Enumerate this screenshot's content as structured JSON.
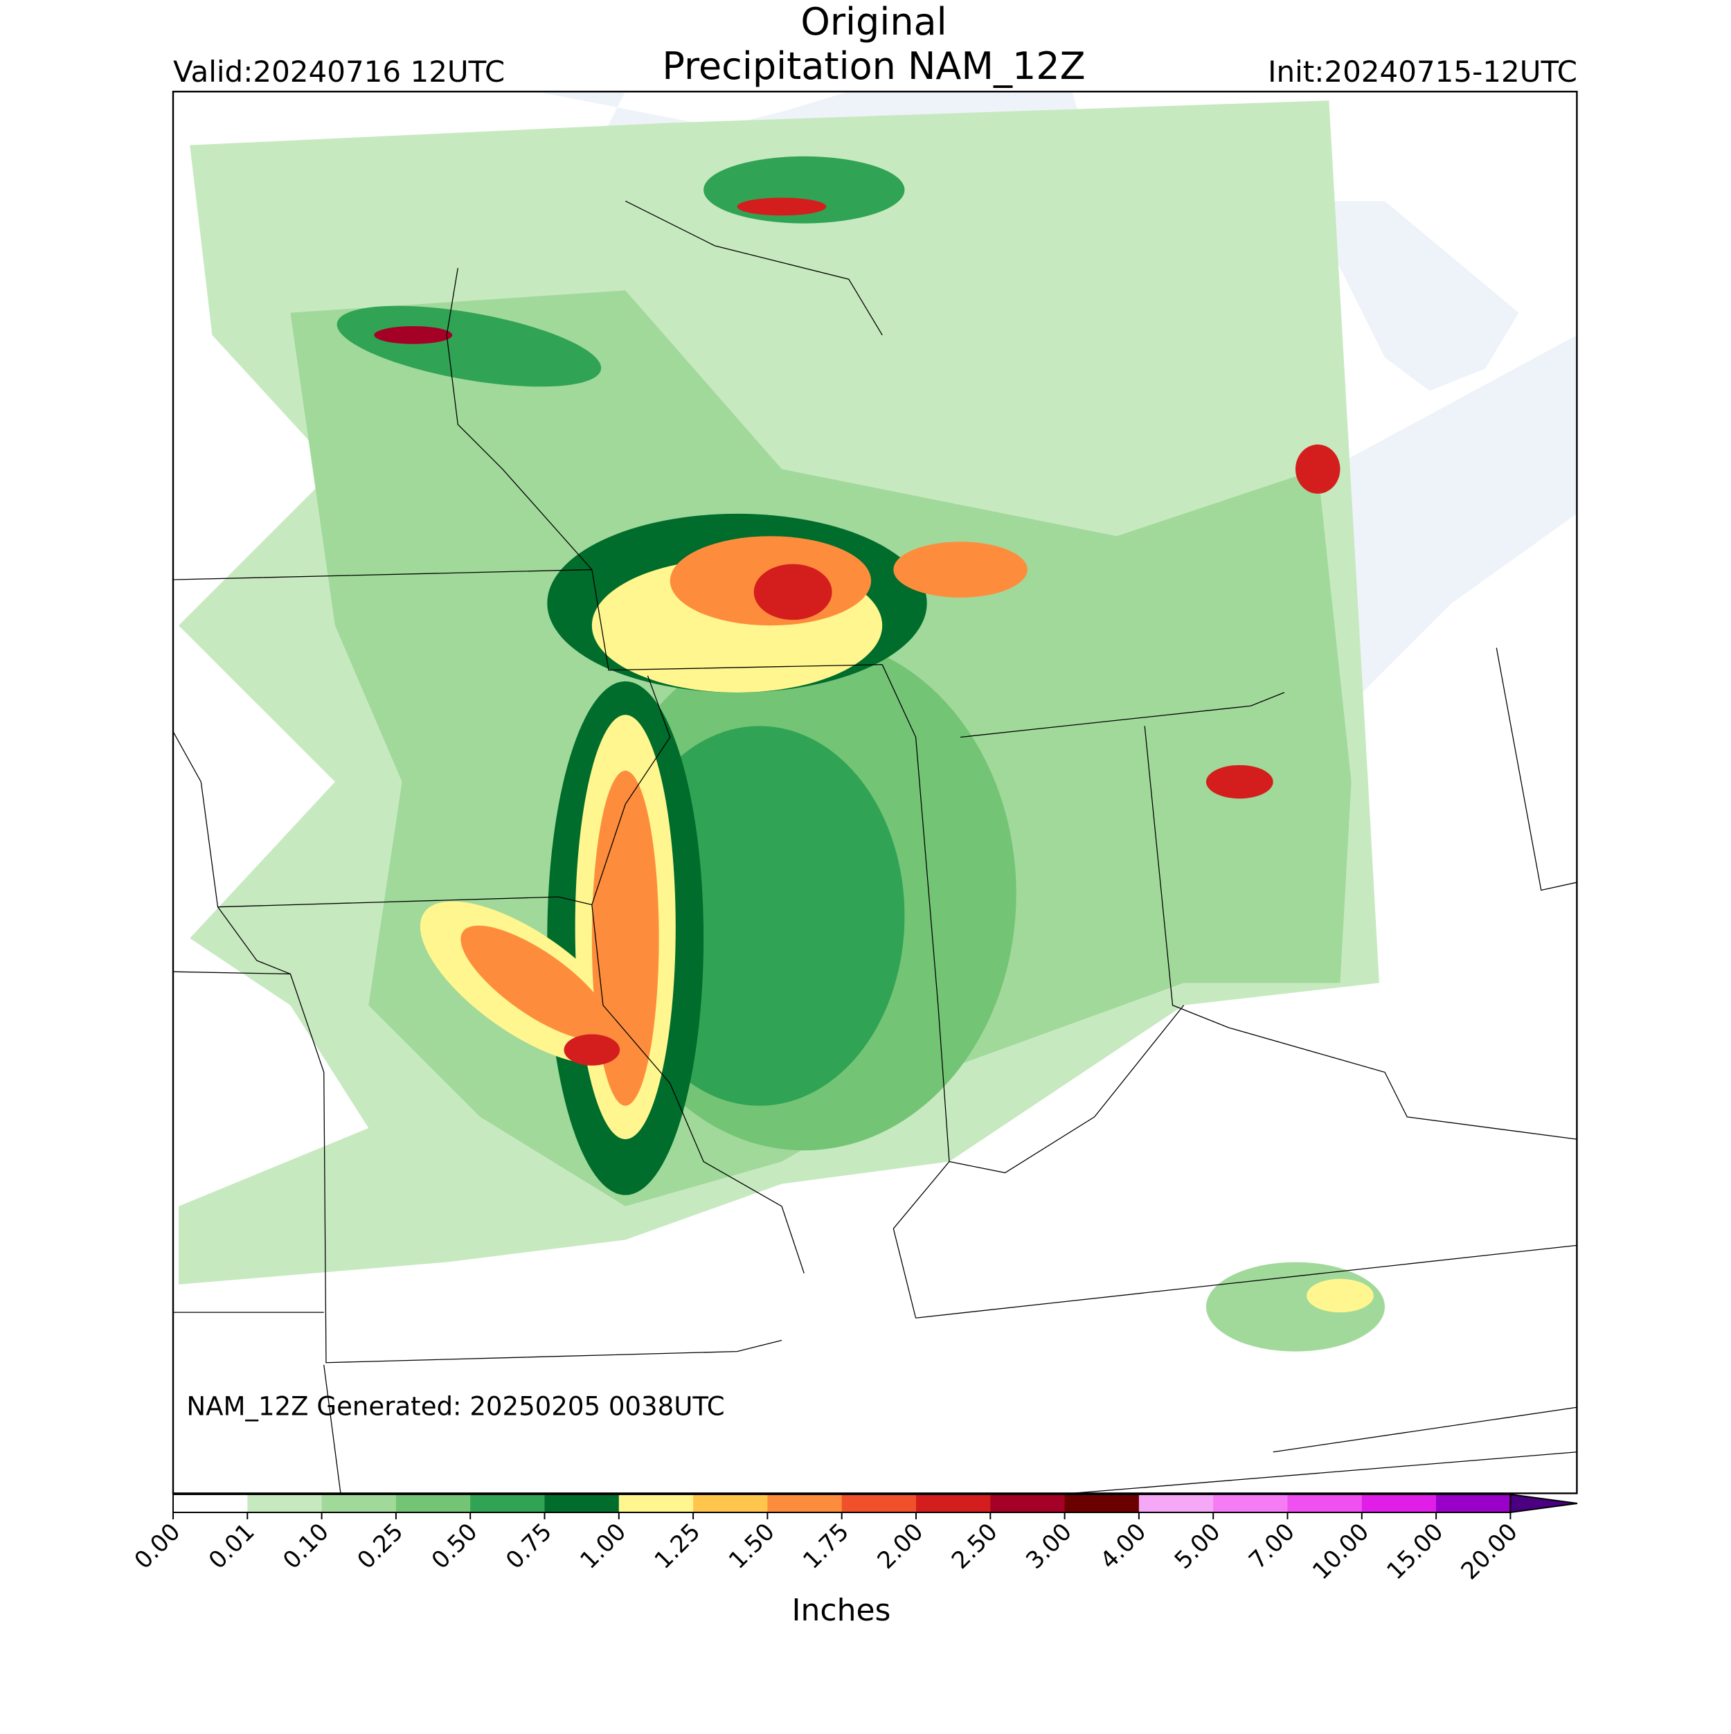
{
  "header": {
    "title": "Original",
    "subtitle": "Precipitation NAM_12Z",
    "valid": "Valid:20240716 12UTC",
    "init": "Init:20240715-12UTC"
  },
  "map": {
    "footnote": "NAM_12Z Generated: 20250205 0038UTC"
  },
  "colorbar": {
    "label": "Inches",
    "ticks": [
      {
        "value": 0,
        "label": "0.00"
      },
      0.01,
      {
        "value": 0.1,
        "label": "0.10"
      },
      0.25,
      {
        "value": 0.5,
        "label": "0.50"
      },
      0.75,
      {
        "value": 1,
        "label": "1.00"
      },
      1.25,
      {
        "value": 1.5,
        "label": "1.50"
      },
      1.75,
      {
        "value": 2,
        "label": "2.00"
      },
      {
        "value": 2.5,
        "label": "2.50"
      },
      {
        "value": 3,
        "label": "3.00"
      },
      {
        "value": 4,
        "label": "4.00"
      },
      {
        "value": 5,
        "label": "5.00"
      },
      {
        "value": 7,
        "label": "7.00"
      },
      {
        "value": 10,
        "label": "10.00"
      },
      {
        "value": 15,
        "label": "15.00"
      },
      {
        "value": 20,
        "label": "20.00"
      }
    ],
    "colors": [
      "#ffffff",
      "#c7e9c0",
      "#a1d99b",
      "#74c476",
      "#31a354",
      "#006d2c",
      "#fff68f",
      "#ffc54c",
      "#fd8d3c",
      "#f0502a",
      "#d41e1e",
      "#a50026",
      "#6a0000",
      "#f5a8f5",
      "#f57cf5",
      "#f050f0",
      "#e01ee8",
      "#9a00c8"
    ],
    "extend_color": "#4b0082"
  }
}
